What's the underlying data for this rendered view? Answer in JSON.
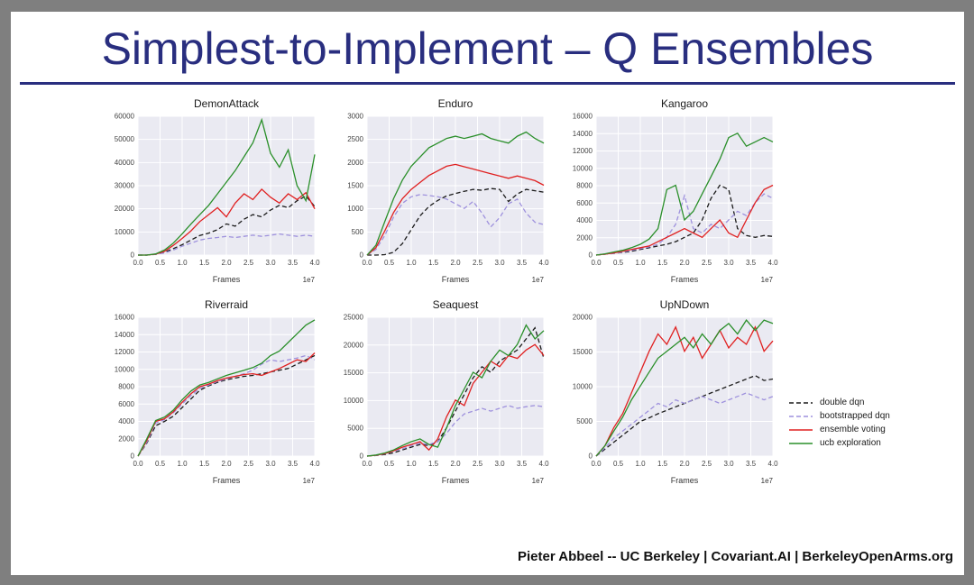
{
  "slide": {
    "title": "Simplest-to-Implement – Q Ensembles",
    "footer": "Pieter Abbeel -- UC Berkeley | Covariant.AI | BerkeleyOpenArms.org",
    "colors": {
      "title": "#292e7f",
      "rule": "#292e7f",
      "frame": "#7f7f7f",
      "plot_bg": "#eaeaf2",
      "grid": "#ffffff"
    }
  },
  "legend": {
    "position": "outside-right",
    "items": [
      {
        "label": "double dqn",
        "color": "#1a1a1a",
        "dash": "5,3"
      },
      {
        "label": "bootstrapped dqn",
        "color": "#9e91dd",
        "dash": "5,3"
      },
      {
        "label": "ensemble voting",
        "color": "#e02020",
        "dash": ""
      },
      {
        "label": "ucb exploration",
        "color": "#2a8f2a",
        "dash": ""
      }
    ]
  },
  "chart_data": [
    {
      "type": "line",
      "title": "DemonAttack",
      "xlabel": "Frames",
      "x_unit": "1e7",
      "xlim": [
        0,
        4.0
      ],
      "ylim": [
        0,
        60000
      ],
      "xtick_step": 0.5,
      "ytick_step": 10000,
      "grid": true,
      "x": [
        0,
        0.2,
        0.4,
        0.6,
        0.8,
        1.0,
        1.2,
        1.4,
        1.6,
        1.8,
        2.0,
        2.2,
        2.4,
        2.6,
        2.8,
        3.0,
        3.2,
        3.4,
        3.6,
        3.8,
        4.0
      ],
      "series": [
        {
          "name": "double dqn",
          "color": "#1a1a1a",
          "dash": "5,3",
          "values": [
            0,
            0,
            300,
            1200,
            2800,
            4500,
            6500,
            8500,
            9500,
            11000,
            13500,
            12500,
            15500,
            17500,
            16500,
            19500,
            21500,
            20500,
            23500,
            25500,
            21000
          ]
        },
        {
          "name": "bootstrapped dqn",
          "color": "#9e91dd",
          "dash": "5,3",
          "values": [
            0,
            0,
            300,
            900,
            2200,
            3800,
            5200,
            6500,
            7200,
            7600,
            8100,
            7600,
            8100,
            8600,
            8100,
            8600,
            9100,
            8600,
            8100,
            8600,
            8100
          ]
        },
        {
          "name": "ensemble voting",
          "color": "#e02020",
          "dash": "",
          "values": [
            0,
            0,
            400,
            1600,
            4200,
            7200,
            10500,
            14500,
            17500,
            20500,
            16500,
            22500,
            26500,
            24000,
            28500,
            25000,
            22500,
            26500,
            24000,
            27000,
            20000
          ]
        },
        {
          "name": "ucb exploration",
          "color": "#2a8f2a",
          "dash": "",
          "values": [
            0,
            0,
            500,
            2200,
            5200,
            9200,
            13500,
            17500,
            21500,
            26500,
            31500,
            36500,
            42500,
            48500,
            58500,
            44000,
            38000,
            45500,
            30000,
            23500,
            43500
          ]
        }
      ]
    },
    {
      "type": "line",
      "title": "Enduro",
      "xlabel": "Frames",
      "x_unit": "1e7",
      "xlim": [
        0,
        4.0
      ],
      "ylim": [
        0,
        3000
      ],
      "xtick_step": 0.5,
      "ytick_step": 500,
      "grid": true,
      "x": [
        0,
        0.2,
        0.4,
        0.6,
        0.8,
        1.0,
        1.2,
        1.4,
        1.6,
        1.8,
        2.0,
        2.2,
        2.4,
        2.6,
        2.8,
        3.0,
        3.2,
        3.4,
        3.6,
        3.8,
        4.0
      ],
      "series": [
        {
          "name": "double dqn",
          "color": "#1a1a1a",
          "dash": "5,3",
          "values": [
            0,
            0,
            10,
            60,
            250,
            550,
            850,
            1050,
            1180,
            1280,
            1330,
            1380,
            1420,
            1400,
            1440,
            1420,
            1160,
            1320,
            1420,
            1390,
            1360
          ]
        },
        {
          "name": "bootstrapped dqn",
          "color": "#9e91dd",
          "dash": "5,3",
          "values": [
            0,
            120,
            420,
            820,
            1120,
            1260,
            1310,
            1290,
            1260,
            1210,
            1110,
            1010,
            1160,
            910,
            610,
            810,
            1110,
            1210,
            910,
            710,
            660
          ]
        },
        {
          "name": "ensemble voting",
          "color": "#e02020",
          "dash": "",
          "values": [
            0,
            160,
            520,
            920,
            1220,
            1420,
            1570,
            1720,
            1820,
            1920,
            1960,
            1910,
            1860,
            1810,
            1760,
            1710,
            1660,
            1710,
            1660,
            1610,
            1510
          ]
        },
        {
          "name": "ucb exploration",
          "color": "#2a8f2a",
          "dash": "",
          "values": [
            0,
            210,
            720,
            1220,
            1620,
            1920,
            2120,
            2320,
            2420,
            2520,
            2570,
            2520,
            2570,
            2620,
            2520,
            2470,
            2420,
            2570,
            2660,
            2520,
            2420
          ]
        }
      ]
    },
    {
      "type": "line",
      "title": "Kangaroo",
      "xlabel": "Frames",
      "x_unit": "1e7",
      "xlim": [
        0,
        4.0
      ],
      "ylim": [
        0,
        16000
      ],
      "xtick_step": 0.5,
      "ytick_step": 2000,
      "grid": true,
      "x": [
        0,
        0.2,
        0.4,
        0.6,
        0.8,
        1.0,
        1.2,
        1.4,
        1.6,
        1.8,
        2.0,
        2.2,
        2.4,
        2.6,
        2.8,
        3.0,
        3.2,
        3.4,
        3.6,
        3.8,
        4.0
      ],
      "series": [
        {
          "name": "double dqn",
          "color": "#1a1a1a",
          "dash": "5,3",
          "values": [
            0,
            100,
            200,
            300,
            450,
            650,
            850,
            1050,
            1250,
            1550,
            2050,
            2550,
            4050,
            6550,
            8050,
            7550,
            3050,
            2250,
            2050,
            2250,
            2150
          ]
        },
        {
          "name": "bootstrapped dqn",
          "color": "#9e91dd",
          "dash": "5,3",
          "values": [
            0,
            100,
            200,
            350,
            550,
            750,
            950,
            1250,
            2050,
            3550,
            6850,
            3050,
            2550,
            3550,
            3050,
            4050,
            5050,
            4550,
            6050,
            7050,
            6550
          ]
        },
        {
          "name": "ensemble voting",
          "color": "#e02020",
          "dash": "",
          "values": [
            0,
            100,
            250,
            450,
            650,
            850,
            1050,
            1550,
            2050,
            2550,
            3050,
            2550,
            2050,
            3050,
            4050,
            2550,
            2050,
            4050,
            6050,
            7550,
            8050
          ]
        },
        {
          "name": "ucb exploration",
          "color": "#2a8f2a",
          "dash": "",
          "values": [
            0,
            150,
            350,
            550,
            850,
            1250,
            1850,
            3050,
            7550,
            8050,
            4050,
            5050,
            7050,
            9050,
            11050,
            13550,
            14050,
            12550,
            13050,
            13550,
            13050
          ]
        }
      ]
    },
    {
      "type": "line",
      "title": "Riverraid",
      "xlabel": "Frames",
      "x_unit": "1e7",
      "xlim": [
        0,
        4.0
      ],
      "ylim": [
        0,
        16000
      ],
      "xtick_step": 0.5,
      "ytick_step": 2000,
      "grid": true,
      "x": [
        0,
        0.2,
        0.4,
        0.6,
        0.8,
        1.0,
        1.2,
        1.4,
        1.6,
        1.8,
        2.0,
        2.2,
        2.4,
        2.6,
        2.8,
        3.0,
        3.2,
        3.4,
        3.6,
        3.8,
        4.0
      ],
      "series": [
        {
          "name": "double dqn",
          "color": "#1a1a1a",
          "dash": "5,3",
          "values": [
            0,
            1500,
            3500,
            4000,
            4600,
            5600,
            6600,
            7600,
            8100,
            8500,
            8800,
            9000,
            9200,
            9300,
            9500,
            9700,
            9900,
            10100,
            10600,
            11100,
            11600
          ]
        },
        {
          "name": "bootstrapped dqn",
          "color": "#9e91dd",
          "dash": "5,3",
          "values": [
            0,
            1600,
            3800,
            4200,
            5000,
            6000,
            7000,
            7800,
            8200,
            8600,
            8900,
            9200,
            9500,
            9900,
            10600,
            11100,
            10900,
            11100,
            11300,
            11600,
            11100
          ]
        },
        {
          "name": "ensemble voting",
          "color": "#e02020",
          "dash": "",
          "values": [
            0,
            1800,
            4000,
            4300,
            5100,
            6200,
            7200,
            8000,
            8300,
            8700,
            9000,
            9200,
            9400,
            9500,
            9300,
            9700,
            10100,
            10600,
            11100,
            10900,
            11900
          ]
        },
        {
          "name": "ucb exploration",
          "color": "#2a8f2a",
          "dash": "",
          "values": [
            0,
            2000,
            4100,
            4500,
            5300,
            6500,
            7500,
            8200,
            8500,
            8900,
            9300,
            9600,
            9900,
            10200,
            10700,
            11600,
            12100,
            13100,
            14100,
            15100,
            15700
          ]
        }
      ]
    },
    {
      "type": "line",
      "title": "Seaquest",
      "xlabel": "Frames",
      "x_unit": "1e7",
      "xlim": [
        0,
        4.0
      ],
      "ylim": [
        0,
        25000
      ],
      "xtick_step": 0.5,
      "ytick_step": 5000,
      "grid": true,
      "x": [
        0,
        0.2,
        0.4,
        0.6,
        0.8,
        1.0,
        1.2,
        1.4,
        1.6,
        1.8,
        2.0,
        2.2,
        2.4,
        2.6,
        2.8,
        3.0,
        3.2,
        3.4,
        3.6,
        3.8,
        4.0
      ],
      "series": [
        {
          "name": "double dqn",
          "color": "#1a1a1a",
          "dash": "5,3",
          "values": [
            0,
            100,
            300,
            600,
            1100,
            1600,
            2100,
            1900,
            2600,
            5100,
            8100,
            11100,
            14100,
            16100,
            15100,
            17100,
            18100,
            19100,
            21100,
            23100,
            17600
          ]
        },
        {
          "name": "bootstrapped dqn",
          "color": "#9e91dd",
          "dash": "5,3",
          "values": [
            0,
            100,
            400,
            900,
            1300,
            1900,
            2300,
            2100,
            2600,
            4100,
            6100,
            7600,
            8100,
            8600,
            8100,
            8600,
            9100,
            8600,
            8900,
            9100,
            8900
          ]
        },
        {
          "name": "ensemble voting",
          "color": "#e02020",
          "dash": "",
          "values": [
            0,
            150,
            450,
            950,
            1600,
            2100,
            2600,
            1100,
            3100,
            7100,
            10100,
            9100,
            13100,
            15100,
            17100,
            16100,
            18100,
            17600,
            19100,
            20100,
            18100
          ]
        },
        {
          "name": "ucb exploration",
          "color": "#2a8f2a",
          "dash": "",
          "values": [
            0,
            200,
            550,
            1100,
            1900,
            2600,
            3100,
            2100,
            1600,
            5100,
            9100,
            12100,
            15100,
            14100,
            17100,
            19100,
            18100,
            20100,
            23600,
            21100,
            22600
          ]
        }
      ]
    },
    {
      "type": "line",
      "title": "UpNDown",
      "xlabel": "Frames",
      "x_unit": "1e7",
      "xlim": [
        0,
        4.0
      ],
      "ylim": [
        0,
        20000
      ],
      "xtick_step": 0.5,
      "ytick_step": 5000,
      "grid": true,
      "x": [
        0,
        0.2,
        0.4,
        0.6,
        0.8,
        1.0,
        1.2,
        1.4,
        1.6,
        1.8,
        2.0,
        2.2,
        2.4,
        2.6,
        2.8,
        3.0,
        3.2,
        3.4,
        3.6,
        3.8,
        4.0
      ],
      "series": [
        {
          "name": "double dqn",
          "color": "#1a1a1a",
          "dash": "5,3",
          "values": [
            0,
            1000,
            2000,
            3000,
            4000,
            5000,
            5500,
            6100,
            6600,
            7100,
            7600,
            8100,
            8600,
            9100,
            9600,
            10100,
            10600,
            11100,
            11600,
            10900,
            11100
          ]
        },
        {
          "name": "bootstrapped dqn",
          "color": "#9e91dd",
          "dash": "5,3",
          "values": [
            0,
            1200,
            2600,
            3600,
            4600,
            5600,
            6600,
            7600,
            7100,
            8100,
            7600,
            8100,
            8600,
            8100,
            7600,
            8100,
            8600,
            9100,
            8600,
            8100,
            8600
          ]
        },
        {
          "name": "ensemble voting",
          "color": "#e02020",
          "dash": "",
          "values": [
            0,
            1500,
            4100,
            6100,
            9100,
            12100,
            15100,
            17600,
            16100,
            18600,
            15100,
            17100,
            14100,
            16100,
            18100,
            15600,
            17100,
            16100,
            18600,
            15100,
            16600
          ]
        },
        {
          "name": "ucb exploration",
          "color": "#2a8f2a",
          "dash": "",
          "values": [
            0,
            1500,
            3600,
            5600,
            8100,
            10100,
            12100,
            14100,
            15100,
            16100,
            17100,
            15600,
            17600,
            16100,
            18100,
            19100,
            17600,
            19600,
            18100,
            19600,
            19100
          ]
        }
      ]
    }
  ]
}
